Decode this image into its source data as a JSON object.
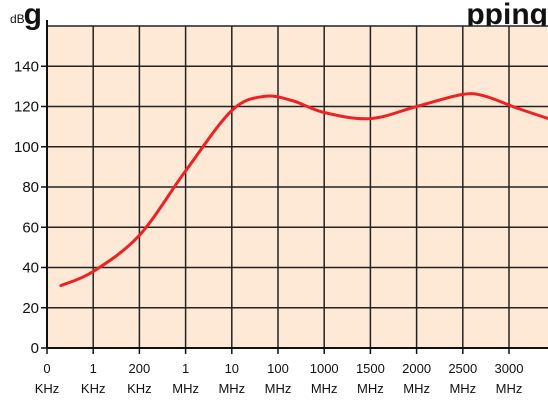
{
  "chart_data": {
    "type": "line",
    "title": "",
    "title_visible_fragment_left": "g",
    "title_visible_fragment_right": "pping",
    "ylabel": "dB",
    "xlabel": "",
    "ylim": [
      0,
      160
    ],
    "yticks": [
      0,
      20,
      40,
      60,
      80,
      100,
      120,
      140
    ],
    "grid": true,
    "legend": "none",
    "x_categories": [
      {
        "value": "0",
        "unit": "KHz"
      },
      {
        "value": "1",
        "unit": "KHz"
      },
      {
        "value": "200",
        "unit": "KHz"
      },
      {
        "value": "1",
        "unit": "MHz"
      },
      {
        "value": "10",
        "unit": "MHz"
      },
      {
        "value": "100",
        "unit": "MHz"
      },
      {
        "value": "1000",
        "unit": "MHz"
      },
      {
        "value": "1500",
        "unit": "MHz"
      },
      {
        "value": "2000",
        "unit": "MHz"
      },
      {
        "value": "2500",
        "unit": "MHz"
      },
      {
        "value": "3000",
        "unit": "MHz"
      }
    ],
    "series": [
      {
        "color": "#ee2222",
        "points": [
          {
            "x": 0.3,
            "y": 31
          },
          {
            "x": 1.0,
            "y": 38
          },
          {
            "x": 2.0,
            "y": 56
          },
          {
            "x": 3.0,
            "y": 88
          },
          {
            "x": 4.0,
            "y": 118
          },
          {
            "x": 4.7,
            "y": 125
          },
          {
            "x": 5.3,
            "y": 123
          },
          {
            "x": 6.0,
            "y": 117
          },
          {
            "x": 7.0,
            "y": 114
          },
          {
            "x": 8.0,
            "y": 120
          },
          {
            "x": 9.0,
            "y": 126
          },
          {
            "x": 9.5,
            "y": 125
          },
          {
            "x": 10.2,
            "y": 119
          },
          {
            "x": 11.0,
            "y": 113
          },
          {
            "x": 11.5,
            "y": 110
          }
        ]
      }
    ]
  },
  "style": {
    "plot_bg": "#fde9d6",
    "grid_color": "#222222",
    "axis_color": "#111111",
    "line_color": "#ee2222"
  }
}
